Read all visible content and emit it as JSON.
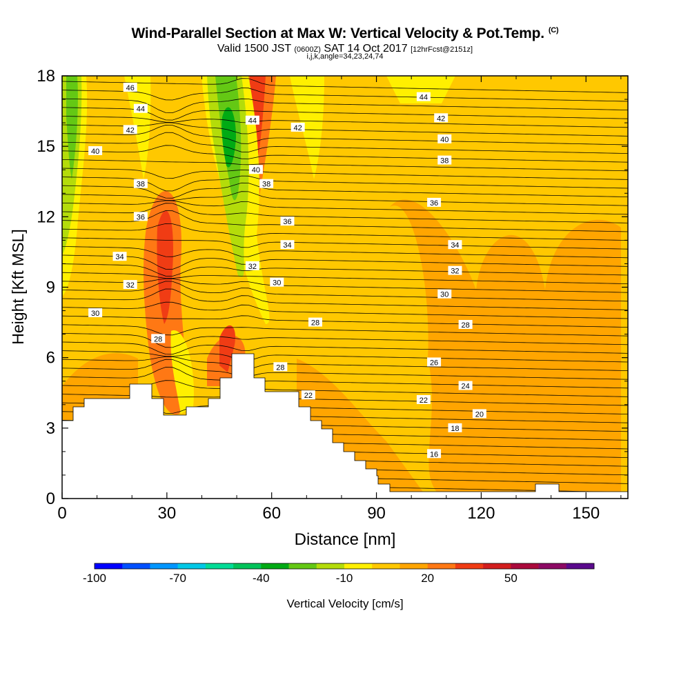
{
  "title": "Wind-Parallel Section at Max W: Vertical Velocity & Pot.Temp.",
  "copyright": "(C)",
  "valid": {
    "prefix": "Valid 1500 JST",
    "utc": "(0600Z)",
    "date": "SAT 14 Oct 2017",
    "forecast": "[12hrFcst@2151z]"
  },
  "indices": "i,j,k,angle=34,23,24,74",
  "chart_data": {
    "type": "heatmap",
    "xlabel": "Distance [nm]",
    "ylabel": "Height [Kft MSL]",
    "xlim": [
      0,
      162
    ],
    "ylim": [
      0,
      18
    ],
    "xticks": [
      0,
      30,
      60,
      90,
      120,
      150
    ],
    "yticks": [
      0,
      3,
      6,
      9,
      12,
      15,
      18
    ],
    "colorbar": {
      "label": "Vertical Velocity [cm/s]",
      "tick_labels": [
        "-100",
        "-70",
        "-40",
        "-10",
        "20",
        "50"
      ],
      "colors": [
        "#0000ff",
        "#0050ff",
        "#0096ff",
        "#00c8e6",
        "#00dc96",
        "#00c35a",
        "#00aa14",
        "#64c814",
        "#b4dc0a",
        "#fff000",
        "#ffc800",
        "#ffa500",
        "#ff7814",
        "#f03c14",
        "#d21e1e",
        "#aa0a3c",
        "#8c0a64",
        "#5a0a8c"
      ]
    },
    "isentrope_labels": [
      {
        "text": "46",
        "x": 19.5,
        "y": 17.5
      },
      {
        "text": "44",
        "x": 22.5,
        "y": 16.6
      },
      {
        "text": "42",
        "x": 19.5,
        "y": 15.7
      },
      {
        "text": "40",
        "x": 9.5,
        "y": 14.8
      },
      {
        "text": "38",
        "x": 22.5,
        "y": 13.4
      },
      {
        "text": "36",
        "x": 22.5,
        "y": 12.0
      },
      {
        "text": "34",
        "x": 16.5,
        "y": 10.3
      },
      {
        "text": "32",
        "x": 19.5,
        "y": 9.1
      },
      {
        "text": "30",
        "x": 9.5,
        "y": 7.9
      },
      {
        "text": "28",
        "x": 27.5,
        "y": 6.8
      },
      {
        "text": "44",
        "x": 54.5,
        "y": 16.1
      },
      {
        "text": "42",
        "x": 67.5,
        "y": 15.8
      },
      {
        "text": "40",
        "x": 55.5,
        "y": 14.0
      },
      {
        "text": "38",
        "x": 58.5,
        "y": 13.4
      },
      {
        "text": "36",
        "x": 64.5,
        "y": 11.8
      },
      {
        "text": "34",
        "x": 64.5,
        "y": 10.8
      },
      {
        "text": "32",
        "x": 54.5,
        "y": 9.9
      },
      {
        "text": "30",
        "x": 61.5,
        "y": 9.2
      },
      {
        "text": "28",
        "x": 72.5,
        "y": 7.5
      },
      {
        "text": "28",
        "x": 62.5,
        "y": 5.6
      },
      {
        "text": "22",
        "x": 70.5,
        "y": 4.4
      },
      {
        "text": "44",
        "x": 103.5,
        "y": 17.1
      },
      {
        "text": "42",
        "x": 108.5,
        "y": 16.2
      },
      {
        "text": "40",
        "x": 109.5,
        "y": 15.3
      },
      {
        "text": "38",
        "x": 109.5,
        "y": 14.4
      },
      {
        "text": "36",
        "x": 106.5,
        "y": 12.6
      },
      {
        "text": "34",
        "x": 112.5,
        "y": 10.8
      },
      {
        "text": "32",
        "x": 112.5,
        "y": 9.7
      },
      {
        "text": "30",
        "x": 109.5,
        "y": 8.7
      },
      {
        "text": "28",
        "x": 115.5,
        "y": 7.4
      },
      {
        "text": "26",
        "x": 106.5,
        "y": 5.8
      },
      {
        "text": "24",
        "x": 115.5,
        "y": 4.8
      },
      {
        "text": "22",
        "x": 103.5,
        "y": 4.2
      },
      {
        "text": "20",
        "x": 119.5,
        "y": 3.6
      },
      {
        "text": "18",
        "x": 112.5,
        "y": 3.0
      },
      {
        "text": "16",
        "x": 106.5,
        "y": 1.9
      }
    ]
  }
}
